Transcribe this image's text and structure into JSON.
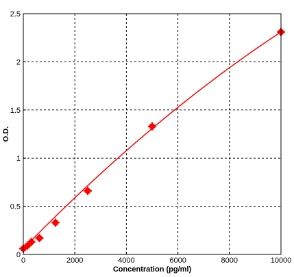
{
  "chart_data": {
    "type": "scatter",
    "title": "",
    "xlabel": "Concentration (pg/ml)",
    "ylabel": "O.D.",
    "xlim": [
      0,
      10000
    ],
    "ylim": [
      0,
      2.5
    ],
    "xticks": [
      0,
      2000,
      4000,
      6000,
      8000,
      10000
    ],
    "yticks": [
      0,
      0.5,
      1,
      1.5,
      2,
      2.5
    ],
    "xtick_labels": [
      "0",
      "2000",
      "4000",
      "6000",
      "8000",
      "10000"
    ],
    "ytick_labels": [
      "0",
      "0.5",
      "1",
      "1.5",
      "2",
      "2.5"
    ],
    "grid": true,
    "grid_style": "dashed",
    "colors": {
      "data": "#ff0000",
      "grid": "#000000",
      "axis": "#000000"
    },
    "series": [
      {
        "points": [
          {
            "x": 0,
            "y": 0.06
          },
          {
            "x": 156,
            "y": 0.09
          },
          {
            "x": 312,
            "y": 0.13
          },
          {
            "x": 625,
            "y": 0.17
          },
          {
            "x": 1250,
            "y": 0.33
          },
          {
            "x": 2500,
            "y": 0.66
          },
          {
            "x": 5000,
            "y": 1.33
          },
          {
            "x": 10000,
            "y": 2.31
          }
        ]
      }
    ],
    "fit_curve": {
      "type": "quadratic",
      "coefficients": [
        0.06,
        0.000274,
        -4.9e-09
      ]
    }
  }
}
